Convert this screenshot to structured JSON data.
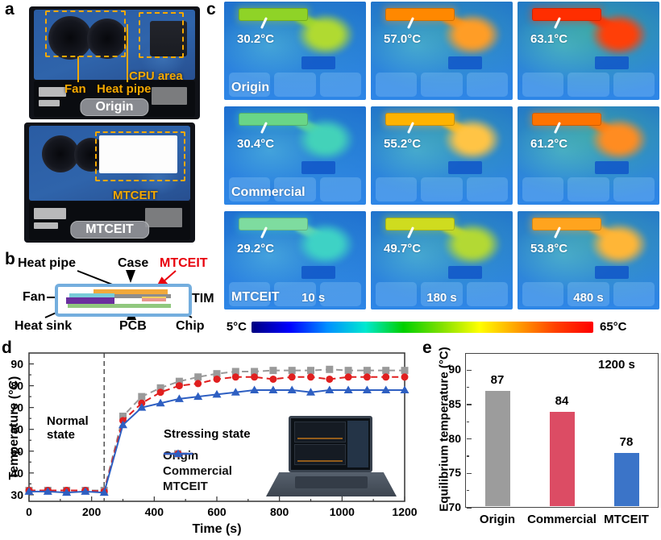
{
  "panel_letters": {
    "a": "a",
    "b": "b",
    "c": "c",
    "d": "d",
    "e": "e"
  },
  "panel_a": {
    "photo_origin": {
      "cpu_area_label": "CPU area",
      "fan_label": "Fan",
      "heat_pipe_label": "Heat pipe",
      "badge": "Origin"
    },
    "photo_mtceit": {
      "mtceit_label": "MTCEIT",
      "badge": "MTCEIT"
    }
  },
  "panel_b": {
    "labels": {
      "heat_pipe": "Heat pipe",
      "case": "Case",
      "mtceit": "MTCEIT",
      "fan": "Fan",
      "tim": "TIM",
      "heat_sink": "Heat sink",
      "pcb": "PCB",
      "chip": "Chip"
    },
    "colors": {
      "frame": "#74aede",
      "mtceit_bar": "#f2a93b",
      "heat_pipe_bar": "#8e8e8e",
      "heat_sink_bar": "#79ccd8",
      "fan_bar": "#6a2f9e",
      "pcb_bar": "#90c87e",
      "chip_bar": "#e8968e",
      "tim_bar": "#f2d060",
      "mtceit_label_color": "#e8000d"
    }
  },
  "panel_c": {
    "rows": [
      {
        "name": "Origin",
        "cells": [
          {
            "temp": "30.2°C",
            "pipe": "#8fd327",
            "blob": "#b0da31",
            "ambient": "rgba(80,205,160,0.22)"
          },
          {
            "temp": "57.0°C",
            "pipe": "#ff8800",
            "blob": "#ff9d26",
            "ambient": "rgba(85,210,140,0.35)"
          },
          {
            "temp": "63.1°C",
            "pipe": "#ff2e00",
            "blob": "#ff3f08",
            "ambient": "rgba(80,210,120,0.50)"
          }
        ]
      },
      {
        "name": "Commercial",
        "cells": [
          {
            "temp": "30.4°C",
            "pipe": "#69d687",
            "blob": "#43d2b9",
            "ambient": "rgba(80,205,180,0.20)"
          },
          {
            "temp": "55.2°C",
            "pipe": "#ffb300",
            "blob": "#ffc445",
            "ambient": "rgba(85,210,140,0.38)"
          },
          {
            "temp": "61.2°C",
            "pipe": "#ff7300",
            "blob": "#ff8c21",
            "ambient": "rgba(85,210,130,0.50)"
          }
        ]
      },
      {
        "name": "MTCEIT",
        "cells": [
          {
            "temp": "29.2°C",
            "time": "10 s",
            "pipe": "#7edc9f",
            "blob": "#3ed2c5",
            "ambient": "rgba(90,205,190,0.18)"
          },
          {
            "temp": "49.7°C",
            "time": "180 s",
            "pipe": "#cfdc1f",
            "blob": "#b3d934",
            "ambient": "rgba(90,210,150,0.32)"
          },
          {
            "temp": "53.8°C",
            "time": "480 s",
            "pipe": "#ffa41e",
            "blob": "#ffb637",
            "ambient": "rgba(95,210,140,0.42)"
          }
        ]
      }
    ],
    "colorbar": {
      "min_label": "5°C",
      "max_label": "65°C",
      "gradient": [
        "#00007f",
        "#0000ff",
        "#0090ff",
        "#00e8d0",
        "#00d000",
        "#80e000",
        "#ffff00",
        "#ffa000",
        "#ff4000",
        "#ff0000"
      ]
    }
  },
  "chart_data": [
    {
      "type": "line",
      "xlabel": "Time (s)",
      "ylabel": "Temperature (°C)",
      "xlim": [
        0,
        1200
      ],
      "ylim": [
        27,
        95
      ],
      "xticks": [
        0,
        200,
        400,
        600,
        800,
        1000,
        1200
      ],
      "yticks": [
        30,
        40,
        50,
        60,
        70,
        80,
        90
      ],
      "x_minor_step": 100,
      "y_minor_step": 5,
      "vline": 240,
      "annotations": {
        "normal": "Normal\nstate",
        "stressing": "Stressing state"
      },
      "legend_position": "center",
      "x": [
        0,
        60,
        120,
        180,
        240,
        300,
        360,
        420,
        480,
        540,
        600,
        660,
        720,
        780,
        840,
        900,
        960,
        1020,
        1080,
        1140,
        1200
      ],
      "series": [
        {
          "name": "Origin",
          "color": "#9a9a9a",
          "marker": "square",
          "dashed": true,
          "values": [
            32,
            32,
            32,
            32,
            32,
            66,
            75,
            79,
            82,
            84,
            85.5,
            86.5,
            86.5,
            87,
            87,
            87,
            87.5,
            87,
            87,
            87,
            87
          ]
        },
        {
          "name": "Commercial",
          "color": "#e01f1f",
          "marker": "circle",
          "dashed": true,
          "values": [
            32,
            32,
            32,
            32,
            31.5,
            64,
            72,
            77,
            80,
            81,
            83,
            84,
            84,
            83,
            84,
            84,
            83,
            84,
            84,
            84,
            84
          ]
        },
        {
          "name": "MTCEIT",
          "color": "#2e5fc2",
          "marker": "triangle",
          "dashed": false,
          "values": [
            31.5,
            31.5,
            31,
            31.5,
            31,
            62,
            70,
            72,
            74,
            75,
            76,
            77,
            78,
            78,
            78,
            77,
            78,
            78,
            78,
            78,
            78
          ]
        }
      ]
    },
    {
      "type": "bar",
      "categories": [
        "Origin",
        "Commercial",
        "MTCEIT"
      ],
      "values": [
        87,
        84,
        78
      ],
      "colors": [
        "#9c9c9c",
        "#dc4c64",
        "#3b74c8"
      ],
      "ylabel": "Equilibrium temperature (°C)",
      "ylim": [
        70,
        92.5
      ],
      "yticks": [
        70,
        75,
        80,
        85,
        90
      ],
      "y_minor_step": 2.5,
      "annotation": "1200 s"
    }
  ]
}
